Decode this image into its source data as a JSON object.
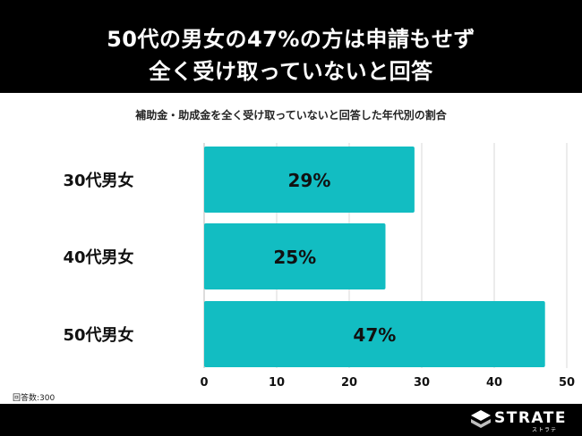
{
  "header": {
    "title_line1": "50代の男女の47%の方は申請もせず",
    "title_line2": "全く受け取っていないと回答"
  },
  "chart_data": {
    "type": "bar",
    "orientation": "horizontal",
    "title": "補助金・助成金を全く受け取っていないと回答した年代別の割合",
    "categories": [
      "30代男女",
      "40代男女",
      "50代男女"
    ],
    "values": [
      29,
      25,
      47
    ],
    "value_labels": [
      "29%",
      "25%",
      "47%"
    ],
    "xlim": [
      0,
      50
    ],
    "xticks": [
      0,
      10,
      20,
      30,
      40,
      50
    ],
    "bar_color": "#12bdc2",
    "grid": true
  },
  "footnote": "回答数:300",
  "brand": {
    "name": "STRATE",
    "sub": "ストラテ"
  }
}
